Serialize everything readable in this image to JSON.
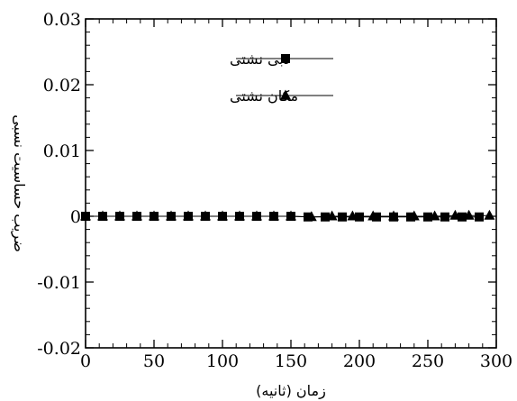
{
  "chart_data": {
    "type": "line",
    "xlabel": "زمان (ثانیه)",
    "ylabel": "ضریب حساسیت نسبی",
    "xlim": [
      0,
      300
    ],
    "ylim": [
      -0.02,
      0.03
    ],
    "x_ticks": [
      "0",
      "50",
      "100",
      "150",
      "200",
      "250",
      "300"
    ],
    "y_ticks": [
      "-0.02",
      "-0.01",
      "0",
      "0.01",
      "0.02",
      "0.03"
    ],
    "grid": false,
    "legend_position": "top-center",
    "series": [
      {
        "name": "دبی نشتی",
        "marker": "square",
        "color": "#000000",
        "points": [
          [
            0,
            0
          ],
          [
            12.5,
            0
          ],
          [
            25,
            0
          ],
          [
            37.5,
            0
          ],
          [
            50,
            0
          ],
          [
            62.5,
            0
          ],
          [
            75,
            0
          ],
          [
            87.5,
            0
          ],
          [
            100,
            0
          ],
          [
            112.5,
            0
          ],
          [
            125,
            0
          ],
          [
            137.5,
            0
          ],
          [
            150,
            0
          ],
          [
            162.5,
            -0.0001
          ],
          [
            175,
            -0.0001
          ],
          [
            187.5,
            -0.0001
          ],
          [
            200,
            -0.0001
          ],
          [
            212.5,
            -0.0001
          ],
          [
            225,
            -0.0001
          ],
          [
            237.5,
            -0.0001
          ],
          [
            250,
            -0.0001
          ],
          [
            262.5,
            -0.0001
          ],
          [
            275,
            -0.0001
          ],
          [
            287.5,
            -0.0001
          ]
        ]
      },
      {
        "name": "مکان نشتی",
        "marker": "triangle",
        "color": "#000000",
        "points": [
          [
            0,
            0
          ],
          [
            12.5,
            0
          ],
          [
            25,
            0
          ],
          [
            37.5,
            0
          ],
          [
            50,
            0
          ],
          [
            62.5,
            0
          ],
          [
            75,
            0
          ],
          [
            87.5,
            0
          ],
          [
            100,
            0
          ],
          [
            112.5,
            0
          ],
          [
            125,
            0
          ],
          [
            137.5,
            0
          ],
          [
            150,
            0
          ],
          [
            165,
            -0.0001
          ],
          [
            180,
            0
          ],
          [
            195,
            0
          ],
          [
            210,
            0
          ],
          [
            225,
            0
          ],
          [
            240,
            0
          ],
          [
            255,
            0
          ],
          [
            270,
            0.0001
          ],
          [
            280,
            0.0001
          ],
          [
            295,
            0.0001
          ]
        ]
      }
    ]
  }
}
